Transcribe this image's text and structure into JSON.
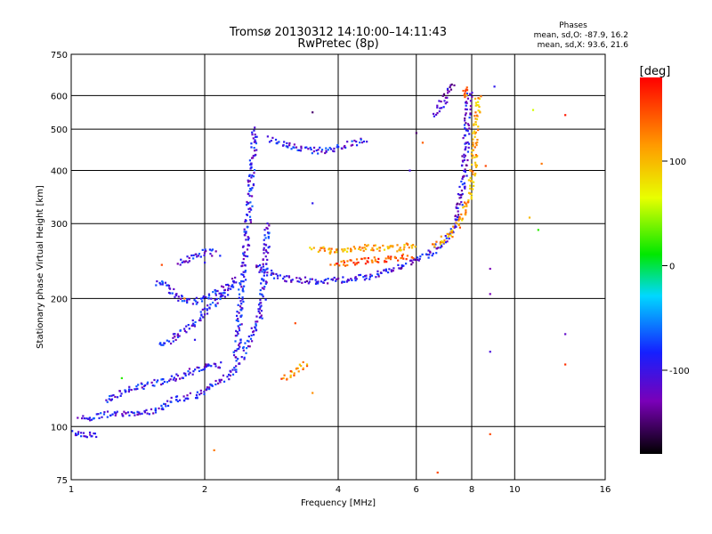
{
  "chart_data": {
    "type": "scatter",
    "title": "Tromsø 20130312 14:10:00–14:11:43",
    "subtitle": "RwPretec (8p)",
    "xlabel": "Frequency [MHz]",
    "ylabel": "Stationary phase Virtual Height [km]",
    "x_scale": "log",
    "y_scale": "log",
    "xlim": [
      1,
      16
    ],
    "ylim": [
      75,
      750
    ],
    "x_ticks": [
      1,
      2,
      4,
      6,
      8,
      10,
      16
    ],
    "x_tick_labels": [
      "1",
      "2",
      "4",
      "6",
      "8",
      "10",
      "16"
    ],
    "y_ticks": [
      75,
      100,
      200,
      300,
      400,
      500,
      600,
      750
    ],
    "y_tick_labels": [
      "75",
      "100",
      "200",
      "300",
      "400",
      "500",
      "600",
      "750"
    ],
    "grid": true,
    "stats": {
      "title": "Phases",
      "line_o": "mean, sd,O: -87.9, 16.2",
      "line_x": "mean, sd,X:  93.6, 21.6"
    },
    "colorbar": {
      "label": "[deg]",
      "range": [
        -180,
        180
      ],
      "ticks": [
        100,
        0,
        -100
      ],
      "tick_labels": [
        "100",
        "0",
        "-100"
      ]
    },
    "traces": [
      {
        "phase": -100,
        "points": [
          [
            1.0,
            97
          ],
          [
            1.05,
            96
          ],
          [
            1.1,
            96
          ],
          [
            1.15,
            96
          ]
        ]
      },
      {
        "phase": -100,
        "points": [
          [
            1.05,
            104
          ],
          [
            1.15,
            106
          ],
          [
            1.25,
            107
          ],
          [
            1.35,
            107
          ],
          [
            1.45,
            108
          ],
          [
            1.55,
            110
          ],
          [
            1.65,
            113
          ],
          [
            1.72,
            116
          ],
          [
            1.8,
            117
          ],
          [
            1.88,
            118
          ],
          [
            1.95,
            120
          ],
          [
            2.05,
            123
          ],
          [
            2.15,
            127
          ],
          [
            2.25,
            131
          ],
          [
            2.35,
            138
          ],
          [
            2.45,
            146
          ]
        ]
      },
      {
        "phase": -100,
        "points": [
          [
            1.2,
            115
          ],
          [
            1.3,
            120
          ],
          [
            1.4,
            124
          ],
          [
            1.55,
            127
          ],
          [
            1.65,
            129
          ],
          [
            1.78,
            132
          ],
          [
            1.9,
            136
          ],
          [
            2.0,
            138
          ],
          [
            2.2,
            140
          ]
        ]
      },
      {
        "phase": -100,
        "points": [
          [
            1.6,
            155
          ],
          [
            1.7,
            160
          ],
          [
            1.8,
            168
          ],
          [
            1.9,
            175
          ],
          [
            2.0,
            185
          ],
          [
            2.1,
            195
          ],
          [
            2.2,
            205
          ],
          [
            2.3,
            215
          ],
          [
            2.35,
            225
          ]
        ]
      },
      {
        "phase": -100,
        "points": [
          [
            1.55,
            218
          ],
          [
            1.65,
            215
          ],
          [
            1.72,
            205
          ],
          [
            1.8,
            198
          ],
          [
            1.9,
            197
          ],
          [
            2.0,
            200
          ],
          [
            2.1,
            205
          ],
          [
            2.2,
            210
          ],
          [
            2.3,
            215
          ]
        ]
      },
      {
        "phase": -100,
        "points": [
          [
            1.75,
            240
          ],
          [
            1.85,
            250
          ],
          [
            1.95,
            255
          ],
          [
            2.05,
            257
          ],
          [
            2.15,
            255
          ]
        ]
      },
      {
        "phase": -100,
        "points": [
          [
            2.35,
            145
          ],
          [
            2.38,
            165
          ],
          [
            2.4,
            185
          ],
          [
            2.42,
            210
          ],
          [
            2.45,
            240
          ],
          [
            2.48,
            270
          ],
          [
            2.5,
            300
          ],
          [
            2.52,
            330
          ],
          [
            2.54,
            370
          ],
          [
            2.56,
            410
          ],
          [
            2.58,
            450
          ],
          [
            2.6,
            500
          ]
        ]
      },
      {
        "phase": -100,
        "points": [
          [
            2.45,
            150
          ],
          [
            2.55,
            165
          ],
          [
            2.65,
            180
          ],
          [
            2.7,
            200
          ],
          [
            2.72,
            220
          ],
          [
            2.74,
            240
          ],
          [
            2.75,
            260
          ],
          [
            2.76,
            280
          ],
          [
            2.77,
            300
          ]
        ]
      },
      {
        "phase": -100,
        "points": [
          [
            2.8,
            475
          ],
          [
            3.0,
            460
          ],
          [
            3.2,
            452
          ],
          [
            3.4,
            447
          ],
          [
            3.6,
            445
          ],
          [
            3.8,
            447
          ],
          [
            4.0,
            452
          ],
          [
            4.2,
            460
          ],
          [
            4.4,
            468
          ],
          [
            4.6,
            472
          ]
        ]
      },
      {
        "phase": -110,
        "points": [
          [
            2.6,
            240
          ],
          [
            2.8,
            228
          ],
          [
            3.0,
            224
          ],
          [
            3.2,
            222
          ],
          [
            3.5,
            220
          ],
          [
            3.8,
            220
          ],
          [
            4.2,
            222
          ],
          [
            4.6,
            225
          ],
          [
            5.0,
            230
          ],
          [
            5.4,
            236
          ],
          [
            5.8,
            243
          ],
          [
            6.2,
            250
          ],
          [
            6.6,
            260
          ],
          [
            7.0,
            275
          ],
          [
            7.3,
            295
          ],
          [
            7.5,
            325
          ],
          [
            7.6,
            360
          ],
          [
            7.7,
            400
          ],
          [
            7.75,
            450
          ],
          [
            7.8,
            500
          ],
          [
            7.85,
            560
          ],
          [
            7.9,
            620
          ]
        ]
      },
      {
        "phase": 110,
        "points": [
          [
            3.5,
            262
          ],
          [
            3.7,
            260
          ],
          [
            3.9,
            258
          ],
          [
            4.1,
            258
          ],
          [
            4.3,
            260
          ],
          [
            4.5,
            262
          ],
          [
            4.7,
            264
          ],
          [
            4.9,
            263
          ],
          [
            5.1,
            262
          ],
          [
            5.4,
            262
          ],
          [
            5.7,
            265
          ],
          [
            6.0,
            270
          ]
        ]
      },
      {
        "phase": 150,
        "points": [
          [
            3.9,
            240
          ],
          [
            4.3,
            244
          ],
          [
            4.7,
            246
          ],
          [
            5.1,
            248
          ],
          [
            5.5,
            250
          ],
          [
            5.9,
            252
          ]
        ]
      },
      {
        "phase": 110,
        "points": [
          [
            6.6,
            265
          ],
          [
            7.0,
            278
          ],
          [
            7.4,
            295
          ],
          [
            7.7,
            320
          ],
          [
            7.9,
            350
          ],
          [
            8.0,
            380
          ],
          [
            8.1,
            420
          ],
          [
            8.15,
            470
          ],
          [
            8.2,
            520
          ],
          [
            8.25,
            560
          ],
          [
            8.3,
            600
          ]
        ]
      },
      {
        "phase": 125,
        "points": [
          [
            3.0,
            130
          ],
          [
            3.1,
            132
          ],
          [
            3.2,
            135
          ],
          [
            3.3,
            138
          ],
          [
            3.4,
            142
          ]
        ]
      },
      {
        "phase": -120,
        "points": [
          [
            6.6,
            540
          ],
          [
            6.9,
            580
          ],
          [
            7.1,
            620
          ],
          [
            7.3,
            640
          ]
        ]
      },
      {
        "phase": 130,
        "points": [
          [
            7.6,
            600
          ],
          [
            7.8,
            620
          ],
          [
            7.9,
            630
          ]
        ]
      }
    ],
    "outliers": [
      {
        "x": 3.5,
        "y": 548,
        "phase": -150
      },
      {
        "x": 2.0,
        "y": 243,
        "phase": -100
      },
      {
        "x": 3.5,
        "y": 335,
        "phase": -100
      },
      {
        "x": 3.5,
        "y": 120,
        "phase": 120
      },
      {
        "x": 1.6,
        "y": 240,
        "phase": 150
      },
      {
        "x": 2.1,
        "y": 88,
        "phase": 130
      },
      {
        "x": 1.7,
        "y": 165,
        "phase": -110
      },
      {
        "x": 1.9,
        "y": 160,
        "phase": -100
      },
      {
        "x": 6.7,
        "y": 78,
        "phase": 150
      },
      {
        "x": 8.8,
        "y": 96,
        "phase": 150
      },
      {
        "x": 8.8,
        "y": 235,
        "phase": -130
      },
      {
        "x": 8.8,
        "y": 205,
        "phase": -130
      },
      {
        "x": 8.8,
        "y": 150,
        "phase": -110
      },
      {
        "x": 8.6,
        "y": 410,
        "phase": 150
      },
      {
        "x": 10.8,
        "y": 310,
        "phase": 100
      },
      {
        "x": 11.3,
        "y": 290,
        "phase": 20
      },
      {
        "x": 11.5,
        "y": 415,
        "phase": 130
      },
      {
        "x": 11.0,
        "y": 555,
        "phase": 60
      },
      {
        "x": 13.0,
        "y": 540,
        "phase": 170
      },
      {
        "x": 13.0,
        "y": 140,
        "phase": 160
      },
      {
        "x": 13.0,
        "y": 165,
        "phase": -120
      },
      {
        "x": 5.8,
        "y": 400,
        "phase": -110
      },
      {
        "x": 6.0,
        "y": 490,
        "phase": -150
      },
      {
        "x": 6.2,
        "y": 465,
        "phase": 140
      },
      {
        "x": 9.0,
        "y": 630,
        "phase": -100
      },
      {
        "x": 3.2,
        "y": 175,
        "phase": 150
      },
      {
        "x": 1.3,
        "y": 130,
        "phase": 20
      },
      {
        "x": 1.8,
        "y": 200,
        "phase": 130
      }
    ]
  }
}
